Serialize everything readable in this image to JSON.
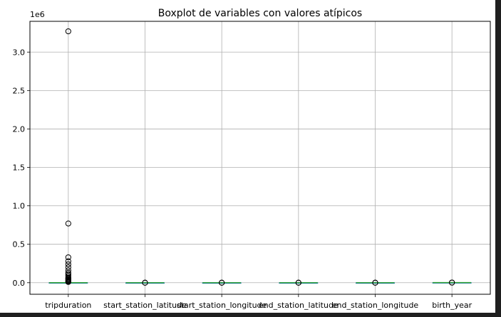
{
  "chart_data": {
    "type": "box",
    "title": "Boxplot de variables con valores atípicos",
    "xlabel": "",
    "ylabel": "",
    "y_offset_text": "1e6",
    "ylim": [
      -0.15,
      3.4
    ],
    "y_ticks": [
      0.0,
      0.5,
      1.0,
      1.5,
      2.0,
      2.5,
      3.0
    ],
    "y_tick_labels": [
      "0.0",
      "0.5",
      "1.0",
      "1.5",
      "2.0",
      "2.5",
      "3.0"
    ],
    "grid": true,
    "categories": [
      "tripduration",
      "start_station_latitude",
      "start_station_longitude",
      "end_station_latitude",
      "end_station_longitude",
      "birth_year"
    ],
    "series": [
      {
        "name": "tripduration",
        "box": {
          "whislo": 0.0,
          "q1": 0.0004,
          "med": 0.0006,
          "q3": 0.001,
          "whishi": 0.002
        },
        "fliers": [
          3.27,
          0.77,
          0.33,
          0.28,
          0.24,
          0.2,
          0.16,
          0.13,
          0.11,
          0.09,
          0.07,
          0.06,
          0.05,
          0.04,
          0.03,
          0.02,
          0.015,
          0.01
        ]
      },
      {
        "name": "start_station_latitude",
        "box": {
          "whislo": 4e-05,
          "q1": 4e-05,
          "med": 4e-05,
          "q3": 4e-05,
          "whishi": 4e-05
        },
        "fliers": [
          4e-05,
          4e-05
        ]
      },
      {
        "name": "start_station_longitude",
        "box": {
          "whislo": -7e-05,
          "q1": -7e-05,
          "med": -7e-05,
          "q3": -7e-05,
          "whishi": -7e-05
        },
        "fliers": [
          -7e-05,
          -7e-05
        ]
      },
      {
        "name": "end_station_latitude",
        "box": {
          "whislo": 4e-05,
          "q1": 4e-05,
          "med": 4e-05,
          "q3": 4e-05,
          "whishi": 4e-05
        },
        "fliers": [
          4e-05,
          4e-05
        ]
      },
      {
        "name": "end_station_longitude",
        "box": {
          "whislo": -7e-05,
          "q1": -7e-05,
          "med": -7e-05,
          "q3": -7e-05,
          "whishi": -7e-05
        },
        "fliers": [
          -7e-05,
          -7e-05
        ]
      },
      {
        "name": "birth_year",
        "box": {
          "whislo": 0.00192,
          "q1": 0.00196,
          "med": 0.00198,
          "q3": 0.002,
          "whishi": 0.00201
        },
        "fliers": [
          0.0019,
          0.0019
        ]
      }
    ],
    "colors": {
      "box": "#1f77b4",
      "median": "#2ca02c",
      "whisker": "#2ca02c",
      "flier_edge": "#000000",
      "grid": "#b0b0b0",
      "axes": "#000000",
      "background": "#ffffff"
    }
  }
}
